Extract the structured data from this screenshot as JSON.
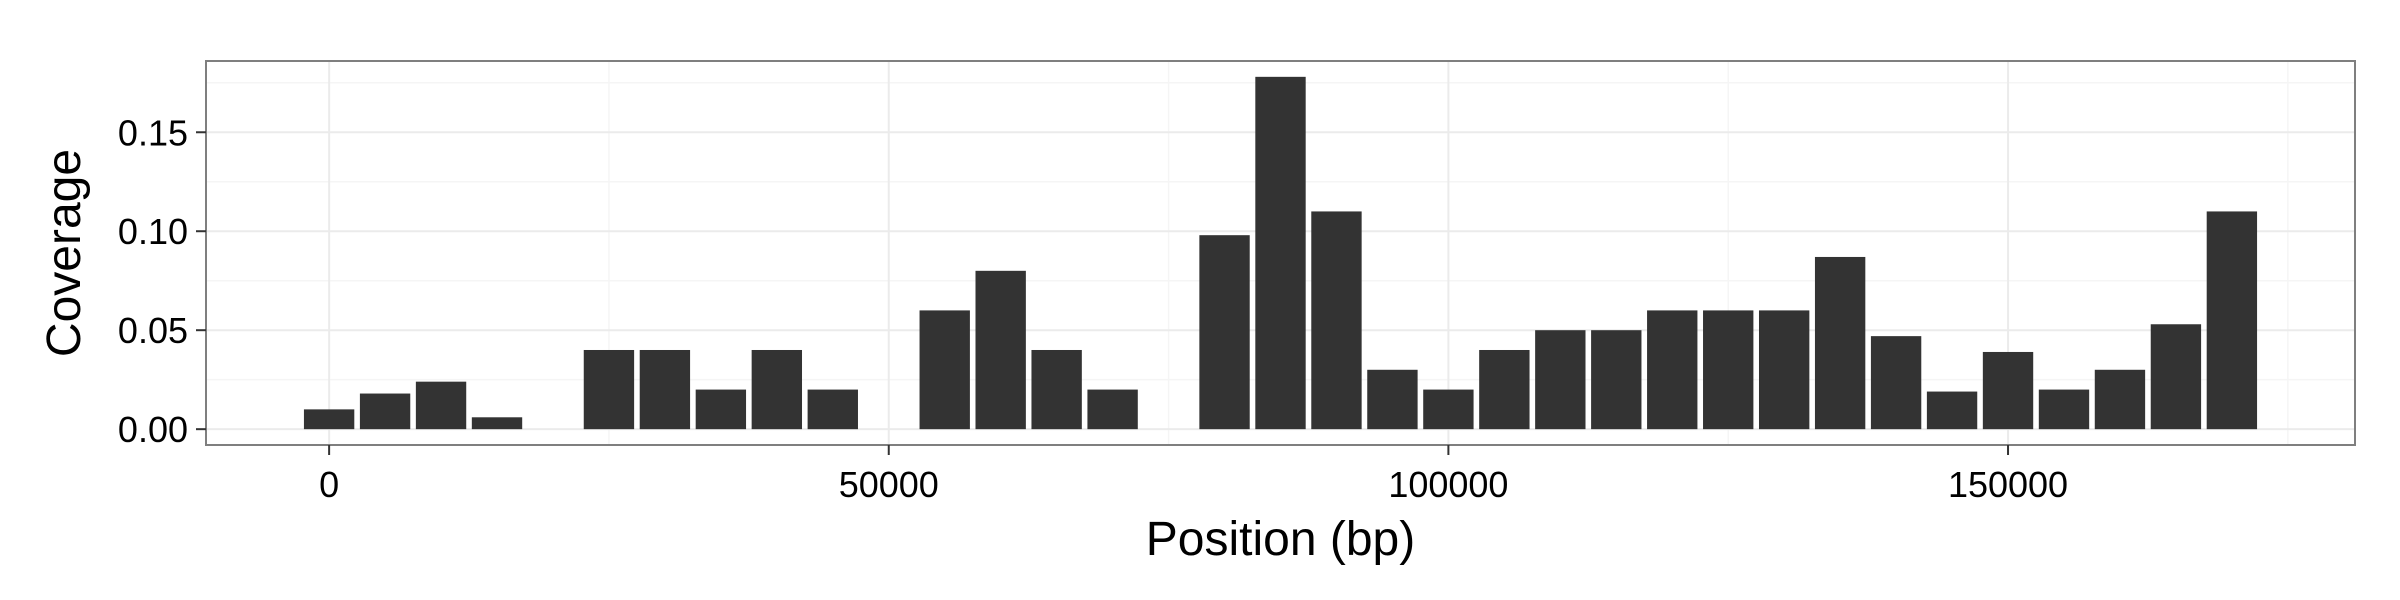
{
  "chart_data": {
    "type": "bar",
    "title": "",
    "xlabel": "Position (bp)",
    "ylabel": "Coverage",
    "xlim": [
      -11000,
      181000
    ],
    "ylim": [
      -0.008,
      0.186
    ],
    "x_major_ticks": [
      0,
      50000,
      100000,
      150000
    ],
    "x_minor_ticks": [
      25000,
      75000,
      125000,
      175000
    ],
    "y_major_ticks": [
      0.0,
      0.05,
      0.1,
      0.15
    ],
    "y_minor_ticks": [
      0.025,
      0.075,
      0.125,
      0.175
    ],
    "x_tick_labels": [
      "0",
      "50000",
      "100000",
      "150000"
    ],
    "y_tick_labels": [
      "0.00",
      "0.05",
      "0.10",
      "0.15"
    ],
    "bin_width": 5000,
    "grid": true,
    "colors": {
      "bar": "#333333",
      "panel_border": "#7f7f7f",
      "grid_major": "#ebebeb",
      "grid_minor": "#f5f5f5"
    },
    "x": [
      0,
      5000,
      10000,
      15000,
      25000,
      30000,
      35000,
      40000,
      45000,
      55000,
      60000,
      65000,
      70000,
      80000,
      85000,
      90000,
      95000,
      100000,
      105000,
      110000,
      115000,
      120000,
      125000,
      130000,
      135000,
      140000,
      145000,
      150000,
      155000,
      160000,
      165000,
      170000
    ],
    "values": [
      0.01,
      0.018,
      0.024,
      0.006,
      0.04,
      0.04,
      0.02,
      0.04,
      0.02,
      0.06,
      0.08,
      0.04,
      0.02,
      0.098,
      0.178,
      0.11,
      0.03,
      0.02,
      0.04,
      0.05,
      0.05,
      0.06,
      0.06,
      0.06,
      0.087,
      0.047,
      0.019,
      0.039,
      0.02,
      0.03,
      0.053,
      0.11
    ]
  }
}
